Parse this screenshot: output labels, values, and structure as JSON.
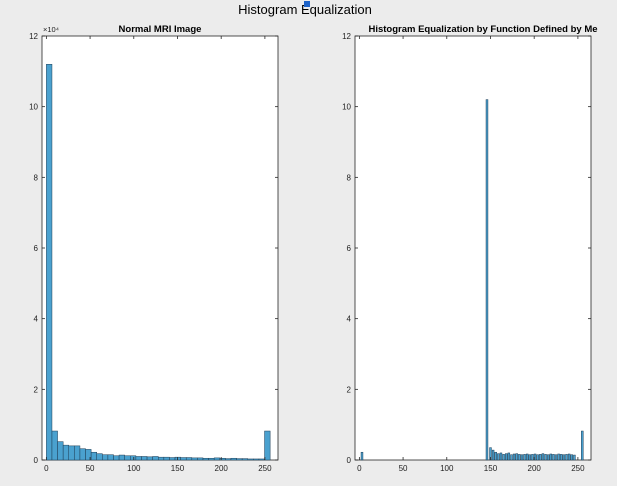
{
  "figure": {
    "title": "Histogram Equalization",
    "background": "#ececec",
    "bar_color": "#4aa1cf",
    "bar_edge_color": "#1f3d55"
  },
  "chart_data": [
    {
      "type": "bar",
      "title": "Normal MRI Image",
      "xlabel": "",
      "ylabel": "",
      "y_exponent_label": "×10⁴",
      "xlim": [
        -5,
        265
      ],
      "ylim": [
        0,
        12
      ],
      "xticks": [
        0,
        50,
        100,
        150,
        200,
        250
      ],
      "yticks": [
        0,
        2,
        4,
        6,
        8,
        10,
        12
      ],
      "bin_width": 6.4,
      "x": [
        3.2,
        9.6,
        16,
        22.4,
        28.8,
        35.2,
        41.6,
        48,
        54.4,
        60.8,
        67.2,
        73.6,
        80,
        86.4,
        92.8,
        99.2,
        105.6,
        112,
        118.4,
        124.8,
        131.2,
        137.6,
        144,
        150.4,
        156.8,
        163.2,
        169.6,
        176,
        182.4,
        188.8,
        195.2,
        201.6,
        208,
        214.4,
        220.8,
        227.2,
        233.6,
        240,
        246.4,
        252.8
      ],
      "values": [
        11.2,
        0.82,
        0.52,
        0.42,
        0.4,
        0.4,
        0.32,
        0.3,
        0.22,
        0.18,
        0.15,
        0.15,
        0.12,
        0.14,
        0.12,
        0.12,
        0.1,
        0.1,
        0.09,
        0.1,
        0.08,
        0.08,
        0.07,
        0.08,
        0.07,
        0.07,
        0.06,
        0.06,
        0.05,
        0.05,
        0.06,
        0.05,
        0.04,
        0.05,
        0.04,
        0.04,
        0.03,
        0.03,
        0.03,
        0.82
      ]
    },
    {
      "type": "bar",
      "title": "Histogram Equalization by Function Defined by Me",
      "xlabel": "",
      "ylabel": "",
      "y_exponent_label": "",
      "xlim": [
        -5,
        265
      ],
      "ylim": [
        0,
        12
      ],
      "xticks": [
        0,
        50,
        100,
        150,
        200,
        250
      ],
      "yticks": [
        0,
        2,
        4,
        6,
        8,
        10,
        12
      ],
      "bin_width": 2.2,
      "x": [
        3,
        146,
        150,
        153,
        156,
        159,
        162,
        165,
        168,
        171,
        174,
        177,
        180,
        183,
        186,
        189,
        192,
        195,
        198,
        201,
        204,
        207,
        210,
        213,
        216,
        219,
        222,
        225,
        228,
        231,
        234,
        237,
        240,
        243,
        246,
        255
      ],
      "values": [
        0.22,
        10.2,
        0.35,
        0.28,
        0.22,
        0.18,
        0.2,
        0.16,
        0.18,
        0.2,
        0.15,
        0.17,
        0.18,
        0.16,
        0.15,
        0.16,
        0.17,
        0.15,
        0.16,
        0.17,
        0.15,
        0.16,
        0.18,
        0.16,
        0.15,
        0.17,
        0.16,
        0.15,
        0.17,
        0.16,
        0.15,
        0.16,
        0.17,
        0.15,
        0.14,
        0.82
      ]
    }
  ]
}
